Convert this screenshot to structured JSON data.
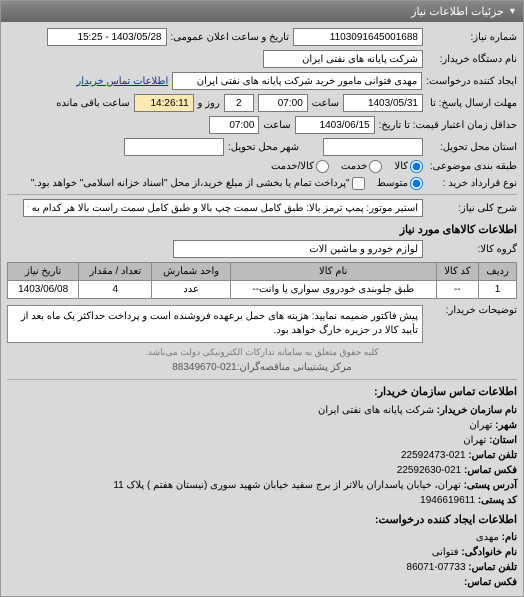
{
  "header": {
    "title": "جزئیات اطلاعات نیاز"
  },
  "fields": {
    "number_label": "شماره نیاز:",
    "number_value": "1103091645001688",
    "announce_time_label": "تاریخ و ساعت اعلان عمومی:",
    "announce_time_value": "1403/05/28 - 15:25",
    "buyer_org_label": "نام دستگاه خریدار:",
    "buyer_org_value": "شرکت پایانه های نفتی ایران",
    "requester_label": "ایجاد کننده درخواست:",
    "requester_value": "مهدی فتوانی مامور خرید شرکت پایانه های نفتی ایران",
    "buyer_contact_link": "اطلاعات تماس خریدار",
    "reply_deadline_label": "مهلت ارسال پاسخ: تا",
    "reply_deadline_date": "1403/05/31",
    "time_label": "ساعت",
    "reply_deadline_time": "07:00",
    "remaining_days": "2",
    "day_label": "روز و",
    "remaining_time": "14:26:11",
    "remaining_label": "ساعت باقی مانده",
    "tenative_label": "حداقل زمان اعتبار قیمت: تا تاریخ:",
    "tenative_date": "1403/06/15",
    "tenative_time": "07:00",
    "delivery_state_label": "استان محل تحویل:",
    "delivery_state_value": "",
    "delivery_city_label": "شهر محل تحویل:",
    "delivery_city_value": "",
    "budget_group_label": "طبقه بندی موضوعی:",
    "budget_options": {
      "goods": "کالا",
      "services": "خدمت",
      "both": "کالا/خدمت"
    },
    "contract_type_label": "نوع قرارداد خرید :",
    "contract_options": {
      "small": "متوسط"
    },
    "contract_note": "\"پرداخت تمام یا بخشی از مبلغ خرید،از محل \"اسناد خزانه اسلامی\" خواهد بود.\"",
    "title_label": "شرح کلی نیاز:",
    "title_value": "استیر موتور: پمپ ترمز بالا: طبق کامل سمت چپ بالا و طبق کامل سمت راست بالا هر کدام به تعداد 4 عدد",
    "goods_section": "اطلاعات کالاهای مورد نیاز",
    "goods_group_label": "گروه کالا:",
    "goods_group_value": "لوازم خودرو و ماشین آلات"
  },
  "table": {
    "columns": [
      "ردیف",
      "کد کالا",
      "نام کالا",
      "واحد شمارش",
      "تعداد / مقدار",
      "تاریخ نیاز"
    ],
    "rows": [
      [
        "1",
        "--",
        "طبق جلوبندی خودروی سواری یا وانت--",
        "عدد",
        "4",
        "1403/06/08"
      ]
    ]
  },
  "desc": {
    "label": "توضیحات خریدار:",
    "value": "پیش فاکتور ضمیمه نمایید: هزینه های حمل برعهده فروشنده است و پرداخت حداکثر یک ماه بعد از تأیید کالا در جزیره خارگ خواهد بود."
  },
  "contact": {
    "section_title": "اطلاعات تماس سازمان خریدار:",
    "org_label": "نام سازمان خریدار:",
    "org_value": "شرکت پایانه های نفتی ایران",
    "city_label": "شهر:",
    "city_value": "تهران",
    "state_label": "استان:",
    "state_value": "تهران",
    "phone_label": "تلفن تماس:",
    "phone_value": "021-22592473",
    "fax_label": "فکس تماس:",
    "fax_value": "021-22592630",
    "address_label": "آدرس پستی:",
    "address_value": "تهران، خیابان پاسداران بالاتر از برج سفید خیابان شهید سوری (نیستان هفتم ) پلاک 11",
    "postal_label": "کد پستی:",
    "postal_value": "1946619611",
    "section2_title": "اطلاعات ایجاد کننده درخواست:",
    "name_label": "نام:",
    "name_value": "مهدی",
    "family_label": "نام خانوادگی:",
    "family_value": "فتوانی",
    "phone2_label": "تلفن تماس:",
    "phone2_value": "07733-86071",
    "fax2_label": "فکس تماس:",
    "fax2_value": ""
  },
  "footer": {
    "rights": "کلیه حقوق متعلق به سامانه تدارکات الکترونیکی دولت می‌باشد.",
    "support": "مرکز پشتیبانی مناقصه‌گران:021-88349670"
  }
}
